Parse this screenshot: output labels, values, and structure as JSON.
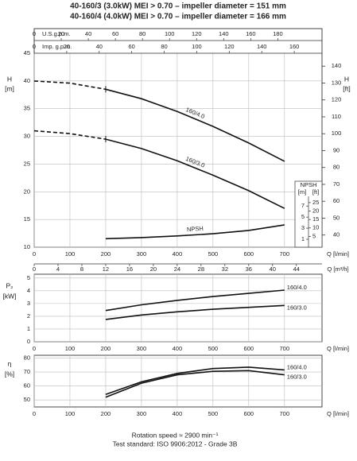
{
  "chart_data": [
    {
      "type": "line",
      "title": "40-160/3 (3.0kW) MEI > 0.70 – impeller diameter = 151 mm",
      "subtitle": "40-160/4 (4.0kW) MEI > 0.70 – impeller diameter = 166 mm",
      "ylabel": "H",
      "yunit": "[m]",
      "y2label": "H",
      "y2unit": "[ft]",
      "xlabel": "Q [l/min]",
      "x": [
        0,
        100,
        200,
        300,
        400,
        500,
        600,
        700
      ],
      "xlim": [
        0,
        805
      ],
      "xticks": [
        0,
        100,
        200,
        300,
        400,
        500,
        600,
        700
      ],
      "ylim": [
        10,
        45
      ],
      "yticks": [
        10,
        15,
        20,
        25,
        30,
        35,
        40,
        45
      ],
      "y2lim": [
        32.81,
        147.64
      ],
      "y2ticks": [
        40,
        50,
        60,
        70,
        80,
        90,
        100,
        110,
        120,
        130,
        140
      ],
      "top_axes": [
        {
          "label": "U.S.g.p.m.",
          "lim": [
            0,
            212.67
          ],
          "ticks": [
            0,
            20,
            40,
            60,
            80,
            100,
            120,
            140,
            160,
            180
          ]
        },
        {
          "label": "Imp. g.p.m.",
          "lim": [
            0,
            177.08
          ],
          "ticks": [
            0,
            20,
            40,
            60,
            80,
            100,
            120,
            140,
            160
          ]
        }
      ],
      "bottom_axis": {
        "label": "Q [m³/h]",
        "lim": [
          0,
          48.3
        ],
        "ticks": [
          0,
          4,
          8,
          12,
          16,
          20,
          24,
          28,
          32,
          36,
          40,
          44
        ]
      },
      "npsh_axis": {
        "label": "NPSH",
        "unit_m": "[m]",
        "unit_ft": "[ft]",
        "lim": [
          -0.43,
          34.57
        ],
        "ticks": [
          1,
          3,
          5,
          7
        ],
        "ft_lim": [
          -1.41,
          113.4
        ],
        "ft_ticks": [
          5,
          10,
          15,
          20,
          25
        ]
      },
      "grid": true,
      "series": [
        {
          "name": "160/4.0",
          "color": "#111111",
          "dash_below": 200,
          "values": [
            40,
            39.6,
            38.5,
            36.8,
            34.5,
            31.8,
            28.8,
            25.5
          ]
        },
        {
          "name": "160/3.0",
          "color": "#111111",
          "dash_below": 200,
          "values": [
            31,
            30.5,
            29.5,
            27.8,
            25.6,
            23,
            20.2,
            17
          ]
        },
        {
          "name": "NPSH",
          "color": "#111111",
          "axis": "npsh",
          "values": [
            null,
            null,
            1.1,
            1.3,
            1.6,
            2.0,
            2.6,
            3.6
          ]
        }
      ]
    },
    {
      "type": "line",
      "ylabel": "P₂",
      "yunit": "[kW]",
      "xlabel": "Q [l/min]",
      "x": [
        200,
        300,
        400,
        500,
        600,
        700
      ],
      "xlim": [
        0,
        805
      ],
      "xticks": [
        0,
        100,
        200,
        300,
        400,
        500,
        600,
        700
      ],
      "ylim": [
        0,
        5.3
      ],
      "yticks": [
        0,
        1,
        2,
        3,
        4,
        5
      ],
      "grid": true,
      "series": [
        {
          "name": "160/4.0",
          "color": "#111111",
          "values": [
            2.45,
            2.9,
            3.25,
            3.55,
            3.8,
            4.05
          ]
        },
        {
          "name": "160/3.0",
          "color": "#111111",
          "values": [
            1.75,
            2.1,
            2.35,
            2.55,
            2.7,
            2.85
          ]
        }
      ]
    },
    {
      "type": "line",
      "ylabel": "η",
      "yunit": "[%]",
      "xlabel": "Q [l/min]",
      "x": [
        200,
        300,
        400,
        500,
        600,
        700
      ],
      "xlim": [
        0,
        805
      ],
      "xticks": [
        0,
        100,
        200,
        300,
        400,
        500,
        600,
        700
      ],
      "ylim": [
        45,
        82
      ],
      "yticks": [
        50,
        60,
        70,
        80
      ],
      "grid": true,
      "series": [
        {
          "name": "160/4.0",
          "color": "#111111",
          "values": [
            54,
            63,
            69,
            72.5,
            73.5,
            71.5
          ]
        },
        {
          "name": "160/3.0",
          "color": "#111111",
          "values": [
            52,
            62,
            68,
            70.5,
            71,
            68
          ]
        }
      ],
      "annotations": [
        "Rotation speed ≈ 2900 min⁻¹",
        "Test standard: ISO 9906:2012 - Grade 3B"
      ]
    }
  ]
}
